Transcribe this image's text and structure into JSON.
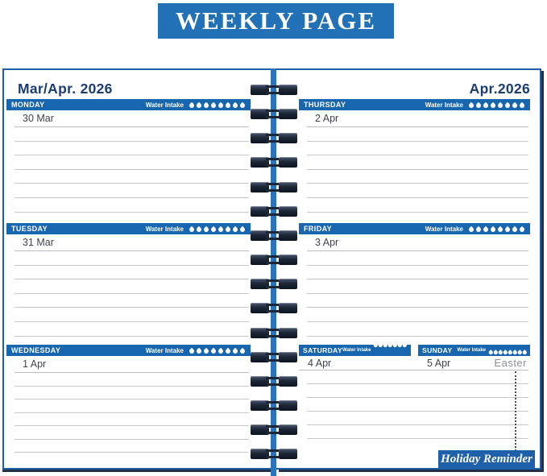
{
  "banner": {
    "title": "WEEKLY PAGE"
  },
  "water_intake": {
    "label": "Water Intake",
    "drops": 8
  },
  "left_page": {
    "month_header": "Mar/Apr. 2026",
    "days": [
      {
        "name": "MONDAY",
        "date": "30 Mar"
      },
      {
        "name": "TUESDAY",
        "date": "31 Mar"
      },
      {
        "name": "WEDNESDAY",
        "date": "1 Apr"
      }
    ]
  },
  "right_page": {
    "month_header": "Apr.2026",
    "days": [
      {
        "name": "THURSDAY",
        "date": "2 Apr"
      },
      {
        "name": "FRIDAY",
        "date": "3 Apr"
      }
    ],
    "weekend_days": [
      {
        "name": "SATURDAY",
        "date": "4 Apr"
      },
      {
        "name": "SUNDAY",
        "date": "5 Apr"
      }
    ],
    "holiday_note": "Easter",
    "holiday_reminder": "Holiday Reminder"
  },
  "colors": {
    "banner_blue": "#2271b7",
    "day_bar_blue": "#1766af",
    "page_border_blue": "#1d5fa7",
    "spine_blue": "#2b74ba",
    "navy_text": "#1c3c74",
    "ring_navy": "#1d2738",
    "rule_gray": "#c6c8cb",
    "date_text": "#3f434c",
    "note_gray": "#8b8e94"
  }
}
